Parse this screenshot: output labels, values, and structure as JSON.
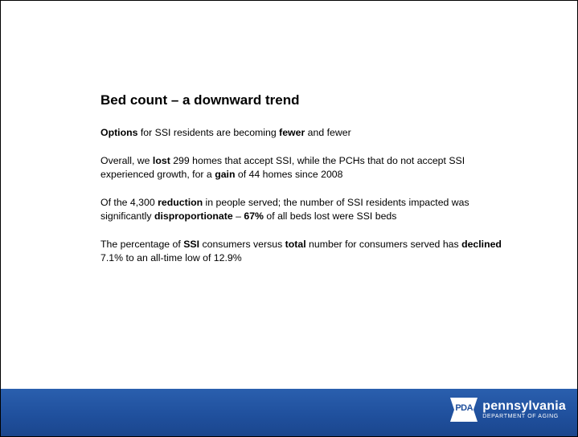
{
  "slide": {
    "title": "Bed count – a downward trend",
    "paragraphs": [
      [
        {
          "text": "Options",
          "bold": true
        },
        {
          "text": " for SSI residents are becoming ",
          "bold": false
        },
        {
          "text": "fewer",
          "bold": true
        },
        {
          "text": " and fewer",
          "bold": false
        }
      ],
      [
        {
          "text": "Overall, we ",
          "bold": false
        },
        {
          "text": "lost",
          "bold": true
        },
        {
          "text": " 299 homes that accept SSI, while the PCHs that do not accept SSI experienced growth, for a ",
          "bold": false
        },
        {
          "text": "gain",
          "bold": true
        },
        {
          "text": " of 44 homes since 2008",
          "bold": false
        }
      ],
      [
        {
          "text": "Of the 4,300 ",
          "bold": false
        },
        {
          "text": "reduction",
          "bold": true
        },
        {
          "text": " in people served; the number of SSI residents impacted was significantly ",
          "bold": false
        },
        {
          "text": "disproportionate",
          "bold": true
        },
        {
          "text": " – ",
          "bold": false
        },
        {
          "text": "67%",
          "bold": true
        },
        {
          "text": " of all beds lost were SSI beds",
          "bold": false
        }
      ],
      [
        {
          "text": "The percentage of ",
          "bold": false
        },
        {
          "text": "SSI",
          "bold": true
        },
        {
          "text": " consumers versus ",
          "bold": false
        },
        {
          "text": "total",
          "bold": true
        },
        {
          "text": " number for consumers served has ",
          "bold": false
        },
        {
          "text": "declined",
          "bold": true
        },
        {
          "text": " 7.1% to an all-time low of 12.9%",
          "bold": false
        }
      ]
    ]
  },
  "footer": {
    "logo_badge": "PDA",
    "logo_wordmark": "pennsylvania",
    "logo_department": "DEPARTMENT OF AGING",
    "bar_color": "#1f4f9c"
  }
}
